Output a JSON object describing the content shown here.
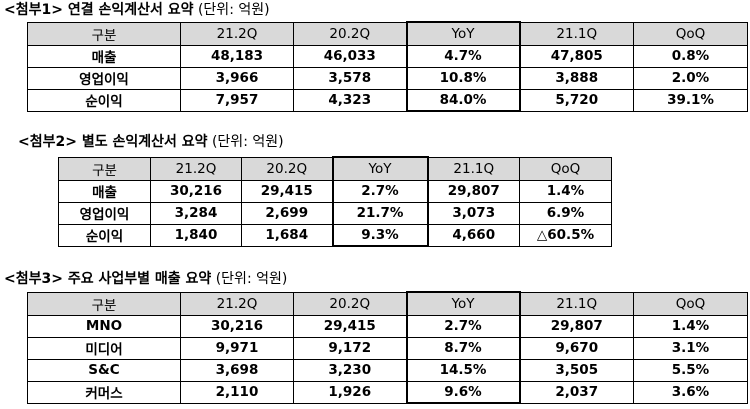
{
  "tables": [
    {
      "title": "<첨부1> 연결 손익계산서 요약",
      "unit": "(단위: 억원)",
      "headers": [
        "구분",
        "21.2Q",
        "20.2Q",
        "YoY",
        "21.1Q",
        "QoQ"
      ],
      "rows": [
        [
          "매출",
          "48,183",
          "46,033",
          "4.7%",
          "47,805",
          "0.8%"
        ],
        [
          "영업이익",
          "3,966",
          "3,578",
          "10.8%",
          "3,888",
          "2.0%"
        ],
        [
          "순이익",
          "7,957",
          "4,323",
          "84.0%",
          "5,720",
          "39.1%"
        ]
      ]
    },
    {
      "title": "<첨부2> 별도 손익계산서 요약",
      "unit": "(단위: 억원)",
      "headers": [
        "구분",
        "21.2Q",
        "20.2Q",
        "YoY",
        "21.1Q",
        "QoQ"
      ],
      "rows": [
        [
          "매출",
          "30,216",
          "29,415",
          "2.7%",
          "29,807",
          "1.4%"
        ],
        [
          "영업이익",
          "3,284",
          "2,699",
          "21.7%",
          "3,073",
          "6.9%"
        ],
        [
          "순이익",
          "1,840",
          "1,684",
          "9.3%",
          "4,660",
          "△60.5%"
        ]
      ]
    },
    {
      "title": "<첨부3> 주요 사업부별 매출 요약",
      "unit": "(단위: 억원)",
      "headers": [
        "구분",
        "21.2Q",
        "20.2Q",
        "YoY",
        "21.1Q",
        "QoQ"
      ],
      "rows": [
        [
          "MNO",
          "30,216",
          "29,415",
          "2.7%",
          "29,807",
          "1.4%"
        ],
        [
          "미디어",
          "9,971",
          "9,172",
          "8.7%",
          "9,670",
          "3.1%"
        ],
        [
          "S&C",
          "3,698",
          "3,230",
          "14.5%",
          "3,505",
          "5.5%"
        ],
        [
          "커머스",
          "2,110",
          "1,926",
          "9.6%",
          "2,037",
          "3.6%"
        ]
      ]
    }
  ]
}
